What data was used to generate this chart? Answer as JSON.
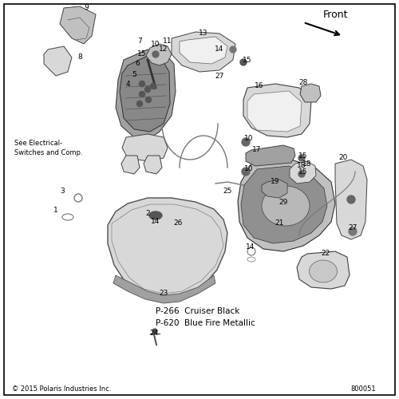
{
  "background_color": "#ffffff",
  "copyright_text": "© 2015 Polaris Industries Inc.",
  "part_number": "800051",
  "front_label": "Front",
  "color_notes": [
    "P-266  Cruiser Black",
    "P-620  Blue Fire Metallic"
  ],
  "see_note": "See Electrical-\nSwitches and Comp.",
  "border_lw": 1.2
}
